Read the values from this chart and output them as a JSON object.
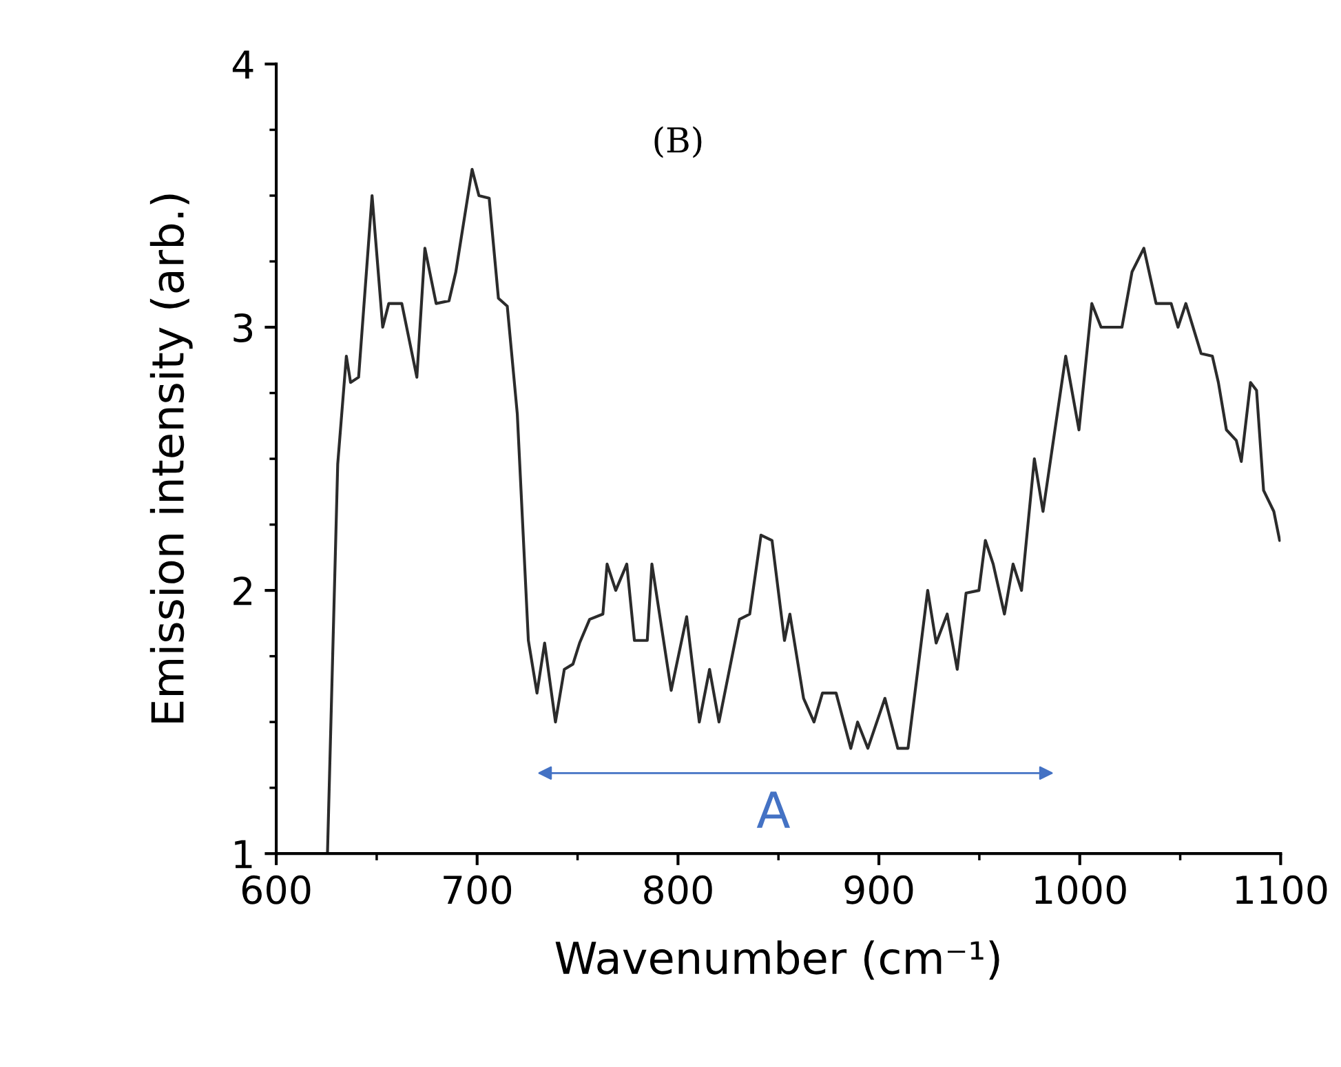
{
  "chart_data": {
    "type": "line",
    "title": "(B)",
    "xlabel": "Wavenumber (cm⁻¹)",
    "ylabel": "Emission intensity (arb.)",
    "xlim": [
      600,
      1100
    ],
    "xticks": [
      600,
      700,
      800,
      900,
      1000,
      1100
    ],
    "ylim": [
      1,
      4
    ],
    "yticks": [
      1,
      2,
      3,
      4
    ],
    "grid": false,
    "legend": false,
    "annotations": [
      "A"
    ],
    "series": [
      {
        "color": "#2b2b2b",
        "x": [
          625.5,
          630.6,
          634.9,
          637,
          641,
          647.7,
          653,
          656,
          662.5,
          670,
          674,
          679.6,
          686,
          689.4,
          697.5,
          700.9,
          706,
          710.6,
          715,
          720,
          725.5,
          729.8,
          733.6,
          739,
          743.4,
          747.7,
          751,
          756,
          762.6,
          764.7,
          769,
          774.5,
          778.3,
          784.7,
          787,
          796.6,
          804.3,
          810.6,
          815.7,
          820.4,
          830.6,
          835.7,
          841.3,
          846.8,
          853,
          855.7,
          862.5,
          867.7,
          871.9,
          878.7,
          886,
          889.4,
          894.5,
          903,
          909.4,
          914.5,
          924.3,
          928.5,
          934,
          939,
          943.4,
          949.8,
          953,
          956.9,
          962.5,
          966.8,
          971,
          977.4,
          981.7,
          993,
          999.6,
          1006,
          1010.6,
          1021,
          1026,
          1031.9,
          1038,
          1045.5,
          1048.9,
          1052.8,
          1060.4,
          1066,
          1069,
          1073,
          1077.9,
          1080.4,
          1085,
          1088,
          1091.5,
          1096.6,
          1099.5
        ],
        "values": [
          1.0,
          2.48,
          2.89,
          2.79,
          2.81,
          3.5,
          3.0,
          3.09,
          3.09,
          2.81,
          3.3,
          3.09,
          3.1,
          3.21,
          3.6,
          3.5,
          3.49,
          3.11,
          3.08,
          2.67,
          1.81,
          1.61,
          1.8,
          1.5,
          1.7,
          1.72,
          1.8,
          1.89,
          1.91,
          2.1,
          2.0,
          2.1,
          1.81,
          1.81,
          2.1,
          1.62,
          1.9,
          1.5,
          1.7,
          1.5,
          1.89,
          1.91,
          2.21,
          2.19,
          1.81,
          1.91,
          1.59,
          1.5,
          1.61,
          1.61,
          1.4,
          1.5,
          1.4,
          1.59,
          1.4,
          1.4,
          2.0,
          1.8,
          1.91,
          1.7,
          1.99,
          2.0,
          2.19,
          2.1,
          1.91,
          2.1,
          2.0,
          2.5,
          2.3,
          2.89,
          2.61,
          3.09,
          3.0,
          3.0,
          3.21,
          3.3,
          3.09,
          3.09,
          3.0,
          3.09,
          2.9,
          2.89,
          2.79,
          2.61,
          2.57,
          2.49,
          2.79,
          2.76,
          2.38,
          2.3,
          2.19
        ]
      }
    ]
  }
}
